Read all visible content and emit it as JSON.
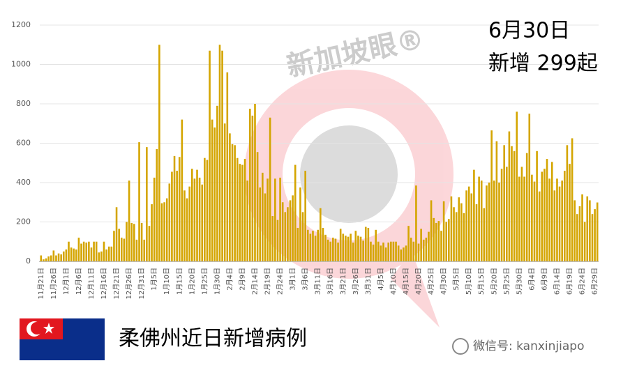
{
  "chart_data": {
    "type": "bar",
    "annotations": [
      "6月30日",
      "新增 299起"
    ],
    "caption": "柔佛州近日新增病例",
    "watermark": "新加坡眼®",
    "wechat": "微信号: kanxinjiapo",
    "color": "#d4a500",
    "grid": true,
    "ylim": [
      0,
      1200
    ],
    "yticks": [
      0,
      200,
      400,
      600,
      800,
      1000,
      1200
    ],
    "categories": [
      "11月21日",
      null,
      null,
      null,
      null,
      "11月26日",
      null,
      null,
      null,
      null,
      "12月1日",
      null,
      null,
      null,
      null,
      "12月6日",
      null,
      null,
      null,
      null,
      "12月11日",
      null,
      null,
      null,
      null,
      "12月16日",
      null,
      null,
      null,
      null,
      "12月21日",
      null,
      null,
      null,
      null,
      "12月26日",
      null,
      null,
      null,
      null,
      "12月31日",
      null,
      null,
      null,
      null,
      "1月5日",
      null,
      null,
      null,
      null,
      "1月10日",
      null,
      null,
      null,
      null,
      "1月15日",
      null,
      null,
      null,
      null,
      "1月20日",
      null,
      null,
      null,
      null,
      "1月25日",
      null,
      null,
      null,
      null,
      "1月30日",
      null,
      null,
      null,
      null,
      "2月4日",
      null,
      null,
      null,
      null,
      "2月9日",
      null,
      null,
      null,
      null,
      "2月14日",
      null,
      null,
      null,
      null,
      "2月19日",
      null,
      null,
      null,
      null,
      "2月24日",
      null,
      null,
      null,
      null,
      "3月1日",
      null,
      null,
      null,
      null,
      "3月6日",
      null,
      null,
      null,
      null,
      "3月11日",
      null,
      null,
      null,
      null,
      "3月16日",
      null,
      null,
      null,
      null,
      "3月21日",
      null,
      null,
      null,
      null,
      "3月26日",
      null,
      null,
      null,
      null,
      "3月31日",
      null,
      null,
      null,
      null,
      "4月5日",
      null,
      null,
      null,
      null,
      "4月10日",
      null,
      null,
      null,
      null,
      "4月15日",
      null,
      null,
      null,
      null,
      "4月20日",
      null,
      null,
      null,
      null,
      "4月25日",
      null,
      null,
      null,
      null,
      "4月30日",
      null,
      null,
      null,
      null,
      "5月5日",
      null,
      null,
      null,
      null,
      "5月10日",
      null,
      null,
      null,
      null,
      "5月15日",
      null,
      null,
      null,
      null,
      "5月20日",
      null,
      null,
      null,
      null,
      "5月25日",
      null,
      null,
      null,
      null,
      "5月30日",
      null,
      null,
      null,
      null,
      "6月4日",
      null,
      null,
      null,
      null,
      "6月9日",
      null,
      null,
      null,
      null,
      "6月14日",
      null,
      null,
      null,
      null,
      "6月19日",
      null,
      null,
      null,
      null,
      "6月24日",
      null,
      null,
      null,
      null,
      "6月29日",
      null
    ],
    "values": [
      30,
      10,
      15,
      25,
      30,
      55,
      30,
      40,
      35,
      50,
      60,
      100,
      70,
      65,
      60,
      120,
      90,
      100,
      95,
      100,
      70,
      100,
      100,
      45,
      50,
      100,
      60,
      75,
      75,
      155,
      275,
      165,
      120,
      115,
      200,
      410,
      195,
      190,
      110,
      605,
      195,
      110,
      580,
      180,
      290,
      425,
      570,
      1100,
      295,
      300,
      320,
      395,
      455,
      535,
      460,
      530,
      720,
      360,
      320,
      380,
      470,
      420,
      465,
      425,
      390,
      525,
      515,
      1070,
      720,
      680,
      790,
      1100,
      1070,
      700,
      960,
      650,
      595,
      590,
      525,
      495,
      490,
      520,
      410,
      775,
      740,
      800,
      555,
      375,
      450,
      345,
      420,
      730,
      230,
      420,
      210,
      425,
      300,
      250,
      275,
      310,
      335,
      490,
      170,
      375,
      250,
      460,
      160,
      140,
      155,
      130,
      160,
      270,
      170,
      135,
      110,
      100,
      120,
      115,
      95,
      165,
      140,
      130,
      125,
      140,
      95,
      155,
      130,
      125,
      105,
      175,
      170,
      100,
      85,
      160,
      100,
      80,
      95,
      70,
      95,
      100,
      100,
      100,
      80,
      60,
      70,
      80,
      180,
      120,
      100,
      385,
      90,
      165,
      110,
      120,
      150,
      310,
      220,
      195,
      205,
      155,
      305,
      200,
      215,
      330,
      275,
      250,
      325,
      295,
      245,
      360,
      380,
      345,
      465,
      290,
      430,
      410,
      270,
      385,
      400,
      665,
      410,
      610,
      400,
      470,
      590,
      480,
      660,
      585,
      560,
      760,
      430,
      480,
      430,
      550,
      750,
      440,
      405,
      560,
      355,
      455,
      470,
      520,
      420,
      505,
      360,
      420,
      380,
      410,
      460,
      590,
      495,
      625,
      310,
      240,
      280,
      340,
      200,
      330,
      310,
      240,
      265,
      299
    ]
  }
}
